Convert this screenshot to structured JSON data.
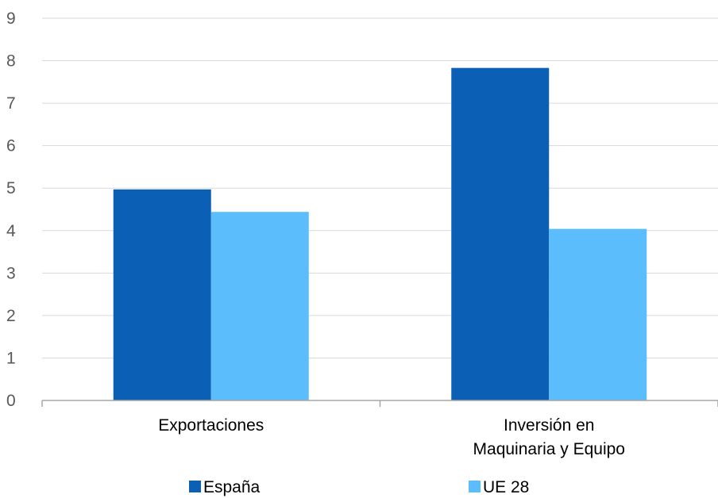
{
  "chart_data": {
    "type": "bar",
    "categories": [
      [
        "Exportaciones"
      ],
      [
        "Inversión en",
        "Maquinaria y Equipo"
      ]
    ],
    "series": [
      {
        "name": "España",
        "values": [
          4.97,
          7.83
        ],
        "color": "#0b5fb5"
      },
      {
        "name": "UE 28",
        "values": [
          4.44,
          4.04
        ],
        "color": "#5bbdfc"
      }
    ],
    "ylim": [
      0,
      9
    ],
    "yticks": [
      0,
      1,
      2,
      3,
      4,
      5,
      6,
      7,
      8,
      9
    ],
    "grid": true,
    "legend": "bottom",
    "title": "",
    "xlabel": "",
    "ylabel": ""
  }
}
